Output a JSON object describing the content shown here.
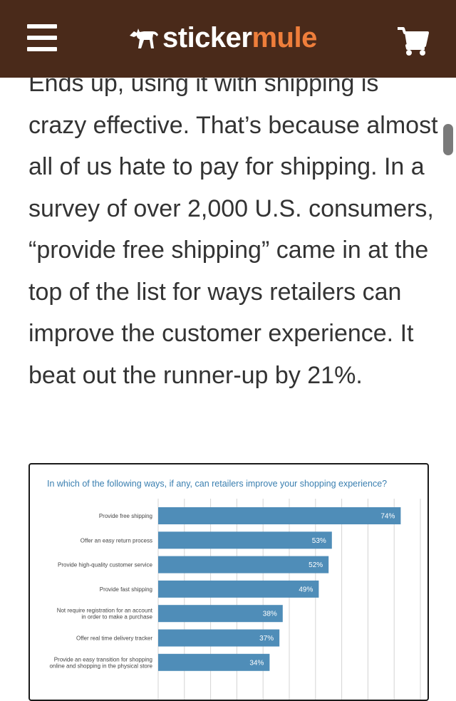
{
  "header": {
    "logo_primary": "sticker",
    "logo_accent": "mule",
    "brand_color": "#4a2a1a",
    "accent_color": "#ef7e3b",
    "menu_icon": "hamburger-menu-icon",
    "cart_icon": "shopping-cart-icon"
  },
  "article": {
    "paragraph": "Ends up, using it with shipping is crazy effective. That’s because almost all of us hate to pay for shipping. In a survey of over 2,000 U.S. consumers, “provide free shipping” came in at the top of the list for ways retailers can improve the customer experience. It beat out the runner-up by 21%."
  },
  "chart_data": {
    "type": "bar",
    "orientation": "horizontal",
    "title": "In which of the following ways, if any, can retailers improve your shopping experience?",
    "categories": [
      [
        "Provide free shipping"
      ],
      [
        "Offer an easy return process"
      ],
      [
        "Provide high-quality customer service"
      ],
      [
        "Provide fast shipping"
      ],
      [
        "Not require registration for an account",
        "in order to make a purchase"
      ],
      [
        "Offer real time delivery tracker"
      ],
      [
        "Provide an easy transition for shopping",
        "online and shopping in the physical store"
      ]
    ],
    "values": [
      74,
      53,
      52,
      49,
      38,
      37,
      34
    ],
    "value_labels": [
      "74%",
      "53%",
      "52%",
      "49%",
      "38%",
      "37%",
      "34%"
    ],
    "xlim": [
      0,
      80
    ],
    "grid": true,
    "bar_color": "#4f8db8",
    "title_color": "#3a7fb0"
  }
}
